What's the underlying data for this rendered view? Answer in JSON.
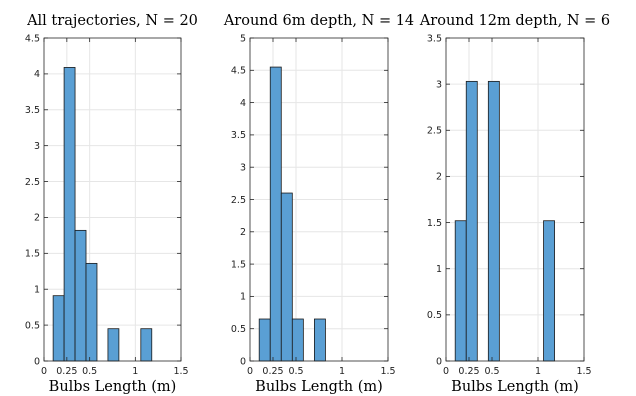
{
  "chart_data": [
    {
      "type": "bar",
      "title": "All trajectories, N = 20",
      "xlabel": "Bulbs Length (m)",
      "ylabel": "",
      "xlim": [
        0,
        1.5
      ],
      "ylim": [
        0,
        4.5
      ],
      "xticks": [
        "0",
        "0.25",
        "0.5",
        "1",
        "1.5"
      ],
      "xtick_values": [
        0,
        0.25,
        0.5,
        1,
        1.5
      ],
      "yticks": [
        "0",
        "0.5",
        "1",
        "1.5",
        "2",
        "2.5",
        "3",
        "3.5",
        "4",
        "4.5"
      ],
      "ytick_values": [
        0,
        0.5,
        1,
        1.5,
        2,
        2.5,
        3,
        3.5,
        4,
        4.5
      ],
      "grid": true,
      "bins": [
        {
          "x0": 0.1,
          "x1": 0.22,
          "value": 0.91
        },
        {
          "x0": 0.22,
          "x1": 0.34,
          "value": 4.09
        },
        {
          "x0": 0.34,
          "x1": 0.46,
          "value": 1.82
        },
        {
          "x0": 0.46,
          "x1": 0.58,
          "value": 1.36
        },
        {
          "x0": 0.58,
          "x1": 0.7,
          "value": 0
        },
        {
          "x0": 0.7,
          "x1": 0.82,
          "value": 0.45
        },
        {
          "x0": 1.06,
          "x1": 1.18,
          "value": 0.45
        }
      ]
    },
    {
      "type": "bar",
      "title": "Around 6m depth, N = 14",
      "xlabel": "Bulbs Length (m)",
      "ylabel": "",
      "xlim": [
        0,
        1.5
      ],
      "ylim": [
        0,
        5
      ],
      "xticks": [
        "0",
        "0.25",
        "0.5",
        "1",
        "1.5"
      ],
      "xtick_values": [
        0,
        0.25,
        0.5,
        1,
        1.5
      ],
      "yticks": [
        "0",
        "0.5",
        "1",
        "1.5",
        "2",
        "2.5",
        "3",
        "3.5",
        "4",
        "4.5",
        "5"
      ],
      "ytick_values": [
        0,
        0.5,
        1,
        1.5,
        2,
        2.5,
        3,
        3.5,
        4,
        4.5,
        5
      ],
      "grid": true,
      "bins": [
        {
          "x0": 0.1,
          "x1": 0.22,
          "value": 0.65
        },
        {
          "x0": 0.22,
          "x1": 0.34,
          "value": 4.55
        },
        {
          "x0": 0.34,
          "x1": 0.46,
          "value": 2.6
        },
        {
          "x0": 0.46,
          "x1": 0.58,
          "value": 0.65
        },
        {
          "x0": 0.58,
          "x1": 0.7,
          "value": 0
        },
        {
          "x0": 0.7,
          "x1": 0.82,
          "value": 0.65
        }
      ]
    },
    {
      "type": "bar",
      "title": "Around 12m depth, N = 6",
      "xlabel": "Bulbs Length (m)",
      "ylabel": "",
      "xlim": [
        0,
        1.5
      ],
      "ylim": [
        0,
        3.5
      ],
      "xticks": [
        "0",
        "0.25",
        "0.5",
        "1",
        "1.5"
      ],
      "xtick_values": [
        0,
        0.25,
        0.5,
        1,
        1.5
      ],
      "yticks": [
        "0",
        "0.5",
        "1",
        "1.5",
        "2",
        "2.5",
        "3",
        "3.5"
      ],
      "ytick_values": [
        0,
        0.5,
        1,
        1.5,
        2,
        2.5,
        3,
        3.5
      ],
      "grid": true,
      "bins": [
        {
          "x0": 0.1,
          "x1": 0.22,
          "value": 1.52
        },
        {
          "x0": 0.22,
          "x1": 0.34,
          "value": 3.03
        },
        {
          "x0": 0.34,
          "x1": 0.46,
          "value": 0
        },
        {
          "x0": 0.46,
          "x1": 0.58,
          "value": 3.03
        },
        {
          "x0": 1.06,
          "x1": 1.18,
          "value": 1.52
        }
      ]
    }
  ],
  "colors": {
    "bar_fill": "#5a9fd4",
    "bar_edge": "#1a1a1a",
    "grid": "#e6e6e6",
    "axes": "#262626"
  }
}
